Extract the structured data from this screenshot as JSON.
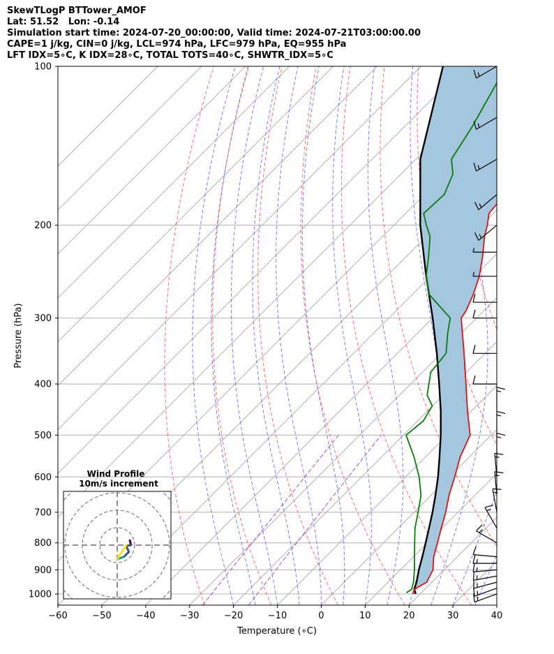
{
  "header": {
    "line1": "SkewTLogP BTTower_AMOF",
    "line2": "Lat: 51.52   Lon: -0.14",
    "line3": "Simulation start time: 2024-07-20_00:00:00, Valid time: 2024-07-21T03:00:00.00",
    "line4": "CAPE=1 j/kg, CIN=0 j/kg, LCL=974 hPa, LFC=979 hPa, EQ=955 hPa",
    "line5": "LFT IDX=5∘C, K IDX=28∘C, TOTAL TOTS=40∘C, SHWTR_IDX=5∘C"
  },
  "chart_data": {
    "type": "line",
    "xlabel": "Temperature (∘C)",
    "ylabel": "Pressure (hPa)",
    "xlim": [
      -60,
      40
    ],
    "ylim": [
      1050,
      100
    ],
    "y_scale": "log",
    "skew": "45 deg",
    "grid": true,
    "x_ticks": [
      "−60",
      "−50",
      "−40",
      "−30",
      "−20",
      "−10",
      "0",
      "10",
      "20",
      "30",
      "40"
    ],
    "y_ticks": [
      "100",
      "200",
      "300",
      "400",
      "500",
      "600",
      "700",
      "800",
      "900",
      "1000"
    ],
    "colors": {
      "temperature": "#e01010",
      "dewpoint": "#0a7a0a",
      "parcel": "#000000",
      "cape_fill": "#a4c6de",
      "dry_adiabat": "#ff6060",
      "moist_adiabat": "#5a6cff",
      "mixing_ratio": "#a050c8",
      "isotherm": "#b0b0b0"
    },
    "series": [
      {
        "key": "temperature",
        "pressure": [
          1000,
          980,
          950,
          900,
          850,
          800,
          750,
          700,
          650,
          600,
          550,
          500,
          450,
          400,
          350,
          300,
          290,
          270,
          250,
          230,
          210,
          200,
          190,
          180,
          170,
          160,
          150,
          140,
          130,
          120,
          110,
          105,
          100
        ],
        "values": [
          18.4,
          17.6,
          18.8,
          17.4,
          14.6,
          12.3,
          9.8,
          7.2,
          4.1,
          1.2,
          -2.1,
          -4.8,
          -10.9,
          -17.4,
          -24.8,
          -33.5,
          -34.1,
          -36.2,
          -38.9,
          -42.5,
          -46.8,
          -48.7,
          -51.0,
          -51.5,
          -52.5,
          -53.4,
          -53.6,
          -54.7,
          -56.0,
          -56.2,
          -56.7,
          -57.0,
          -57.0
        ]
      },
      {
        "key": "dewpoint",
        "pressure": [
          995,
          980,
          950,
          900,
          850,
          800,
          750,
          700,
          650,
          600,
          550,
          500,
          470,
          440,
          420,
          380,
          350,
          320,
          300,
          270,
          250,
          230,
          210,
          200,
          190,
          175,
          160,
          150,
          130,
          100
        ],
        "values": [
          16.6,
          17.0,
          15.8,
          13.2,
          10.2,
          7.1,
          3.8,
          0.9,
          -2.3,
          -6.9,
          -12.6,
          -19.4,
          -18.7,
          -20.1,
          -23.7,
          -28.1,
          -28.9,
          -33.2,
          -36.0,
          -46.4,
          -51.0,
          -54.8,
          -59.2,
          -62.6,
          -65.9,
          -65.5,
          -68.2,
          -71.9,
          -74.6,
          -80.6
        ]
      },
      {
        "key": "parcel",
        "pressure": [
          1000,
          980,
          950,
          900,
          850,
          800,
          750,
          700,
          650,
          600,
          550,
          500,
          450,
          400,
          350,
          300,
          250,
          200,
          150,
          100
        ],
        "values": [
          19.0,
          17.6,
          16.5,
          14.2,
          12.0,
          9.6,
          7.0,
          4.2,
          1.0,
          -2.6,
          -6.8,
          -11.5,
          -17.0,
          -23.5,
          -31.0,
          -40.0,
          -51.0,
          -64.0,
          -79.0,
          -95.0
        ]
      }
    ],
    "wind_barbs": {
      "pressure": [
        1000,
        975,
        950,
        925,
        900,
        875,
        850,
        800,
        750,
        700,
        650,
        600,
        550,
        500,
        450,
        400,
        350,
        300,
        280,
        250,
        225,
        200,
        175,
        150,
        125,
        100
      ],
      "speed_kt": [
        15,
        15,
        15,
        15,
        15,
        15,
        10,
        15,
        15,
        15,
        15,
        15,
        15,
        15,
        15,
        10,
        10,
        10,
        10,
        5,
        5,
        15,
        15,
        15,
        15,
        15
      ],
      "direction_deg": [
        250,
        250,
        255,
        260,
        265,
        270,
        275,
        300,
        330,
        350,
        355,
        355,
        0,
        0,
        0,
        270,
        270,
        270,
        270,
        270,
        270,
        230,
        230,
        240,
        240,
        240
      ]
    },
    "inset": {
      "title": "Wind Profile",
      "subtitle": "10m/s increment"
    }
  }
}
